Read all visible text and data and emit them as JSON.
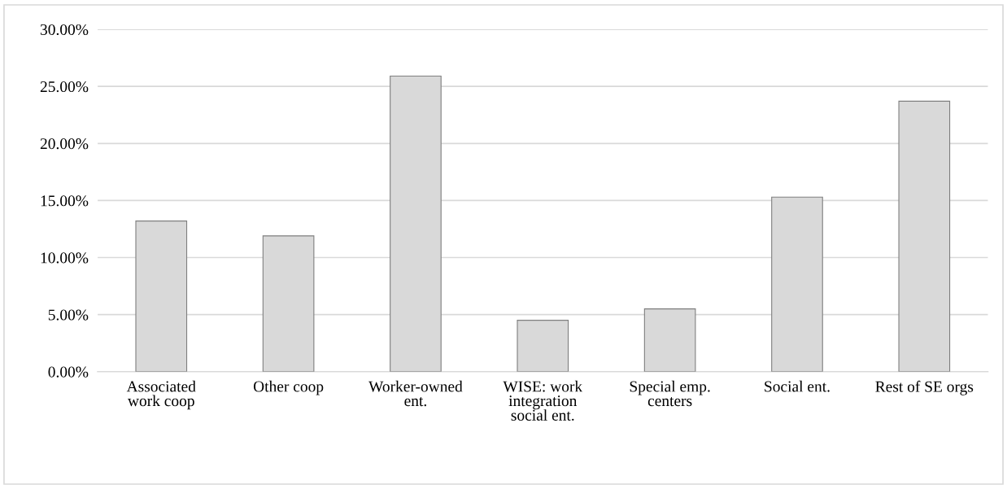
{
  "chart_data": {
    "type": "bar",
    "categories": [
      "Associated\nwork coop",
      "Other coop",
      "Worker-owned\nent.",
      "WISE: work\nintegration\nsocial ent.",
      "Special emp.\ncenters",
      "Social ent.",
      "Rest of SE orgs"
    ],
    "values": [
      13.2,
      11.9,
      25.9,
      4.5,
      5.5,
      15.3,
      23.7
    ],
    "color": "#d9d9d9",
    "ylim": [
      0,
      30
    ],
    "yticks": [
      {
        "value": 0,
        "label": "0.00%"
      },
      {
        "value": 5,
        "label": "5.00%"
      },
      {
        "value": 10,
        "label": "10.00%"
      },
      {
        "value": 15,
        "label": "15.00%"
      },
      {
        "value": 20,
        "label": "20.00%"
      },
      {
        "value": 25,
        "label": "25.00%"
      },
      {
        "value": 30,
        "label": "30.00%"
      }
    ],
    "grid": "y",
    "legend": false
  }
}
